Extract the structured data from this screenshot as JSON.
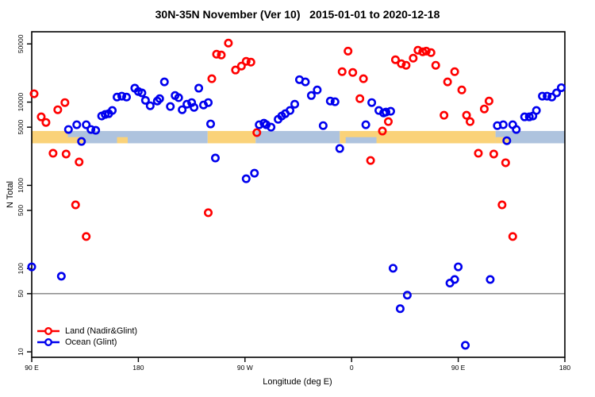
{
  "chart_data": {
    "type": "scatter",
    "title": "30N-35N November (Ver 10)   2015-01-01 to 2020-12-18",
    "xlabel": "Longitude (deg E)",
    "ylabel": "N Total",
    "x_axis": {
      "range_deg": [
        90,
        540
      ],
      "ticks": [
        {
          "value": 90,
          "label": "90 E"
        },
        {
          "value": 180,
          "label": "180"
        },
        {
          "value": 270,
          "label": "90 W"
        },
        {
          "value": 360,
          "label": "0"
        },
        {
          "value": 450,
          "label": "90 E"
        },
        {
          "value": 540,
          "label": "180"
        }
      ]
    },
    "y_axis": {
      "scale": "log10",
      "range": [
        8.6,
        70000
      ],
      "ticks": [
        {
          "value": 10,
          "label": "10"
        },
        {
          "value": 50,
          "label": "50"
        },
        {
          "value": 100,
          "label": "100"
        },
        {
          "value": 500,
          "label": "500"
        },
        {
          "value": 1000,
          "label": "1000"
        },
        {
          "value": 5000,
          "label": "5000"
        },
        {
          "value": 10000,
          "label": "10000"
        },
        {
          "value": 50000,
          "label": "50000"
        }
      ]
    },
    "reference_line_y": 50,
    "grid": false,
    "legend_position": "bottom-left",
    "surface_band": {
      "value_range": [
        3200,
        4500
      ],
      "land_color": "#FAD279",
      "ocean_color": "#AEC3DE",
      "segments": [
        {
          "surface": "land",
          "lon": [
            90,
            120.5
          ]
        },
        {
          "surface": "ocean",
          "lon": [
            120.5,
            238.5
          ]
        },
        {
          "surface": "land",
          "lon": [
            238.5,
            279
          ]
        },
        {
          "surface": "ocean",
          "lon": [
            279,
            350
          ]
        },
        {
          "surface": "land",
          "lon": [
            350,
            481.5
          ]
        },
        {
          "surface": "ocean",
          "lon": [
            481.5,
            540
          ]
        }
      ],
      "coast_patches": [
        {
          "surface": "land",
          "lon": [
            120.5,
            133.5
          ]
        },
        {
          "surface": "land",
          "lon": [
            162,
            171
          ]
        },
        {
          "surface": "ocean",
          "lon": [
            355,
            381
          ]
        },
        {
          "surface": "land",
          "lon": [
            481.5,
            493
          ]
        }
      ]
    },
    "series": [
      {
        "name": "Land (Nadir&Glint)",
        "color": "#FF0000",
        "points": [
          [
            92,
            12600
          ],
          [
            98,
            6650
          ],
          [
            102,
            5700
          ],
          [
            108,
            2430
          ],
          [
            112,
            8100
          ],
          [
            118,
            9870
          ],
          [
            119,
            2380
          ],
          [
            127,
            583
          ],
          [
            130,
            1910
          ],
          [
            136,
            243
          ],
          [
            239,
            469
          ],
          [
            242,
            19100
          ],
          [
            246,
            37600
          ],
          [
            250,
            36800
          ],
          [
            256,
            51200
          ],
          [
            262,
            24300
          ],
          [
            267,
            27100
          ],
          [
            271,
            30900
          ],
          [
            275,
            30200
          ],
          [
            280,
            4300
          ],
          [
            352,
            23200
          ],
          [
            357,
            41000
          ],
          [
            361,
            22700
          ],
          [
            367,
            11000
          ],
          [
            370,
            19100
          ],
          [
            376,
            1990
          ],
          [
            386,
            4490
          ],
          [
            391,
            5830
          ],
          [
            397,
            32300
          ],
          [
            402,
            28900
          ],
          [
            406,
            27700
          ],
          [
            412,
            33700
          ],
          [
            416,
            42000
          ],
          [
            420,
            40200
          ],
          [
            423,
            41000
          ],
          [
            427,
            39300
          ],
          [
            431,
            27700
          ],
          [
            438,
            6950
          ],
          [
            441,
            17500
          ],
          [
            447,
            23200
          ],
          [
            453,
            14000
          ],
          [
            457,
            6950
          ],
          [
            460,
            5830
          ],
          [
            467,
            2430
          ],
          [
            472,
            8280
          ],
          [
            476,
            10300
          ],
          [
            480,
            2380
          ],
          [
            487,
            583
          ],
          [
            490,
            1870
          ],
          [
            496,
            243
          ]
        ]
      },
      {
        "name": "Ocean (Glint)",
        "color": "#0000EE",
        "points": [
          [
            90,
            105
          ],
          [
            115,
            81
          ],
          [
            121,
            4690
          ],
          [
            128,
            5350
          ],
          [
            132,
            3370
          ],
          [
            136,
            5350
          ],
          [
            140,
            4690
          ],
          [
            144,
            4580
          ],
          [
            149,
            6810
          ],
          [
            152,
            7110
          ],
          [
            155,
            7260
          ],
          [
            158,
            7930
          ],
          [
            162,
            11500
          ],
          [
            166,
            11800
          ],
          [
            170,
            11500
          ],
          [
            177,
            14700
          ],
          [
            180,
            13400
          ],
          [
            183,
            12900
          ],
          [
            186,
            10500
          ],
          [
            190,
            9040
          ],
          [
            196,
            10300
          ],
          [
            198,
            11000
          ],
          [
            202,
            17500
          ],
          [
            207,
            8850
          ],
          [
            211,
            12000
          ],
          [
            214,
            11300
          ],
          [
            217,
            8100
          ],
          [
            221,
            9440
          ],
          [
            225,
            9870
          ],
          [
            227,
            8650
          ],
          [
            231,
            14700
          ],
          [
            235,
            9240
          ],
          [
            239,
            9870
          ],
          [
            241,
            5470
          ],
          [
            245,
            2130
          ],
          [
            271,
            1200
          ],
          [
            278,
            1400
          ],
          [
            282,
            5350
          ],
          [
            286,
            5580
          ],
          [
            288,
            5350
          ],
          [
            292,
            5000
          ],
          [
            298,
            6220
          ],
          [
            301,
            6810
          ],
          [
            304,
            7260
          ],
          [
            308,
            7930
          ],
          [
            312,
            9440
          ],
          [
            316,
            18600
          ],
          [
            321,
            17500
          ],
          [
            326,
            12000
          ],
          [
            331,
            14000
          ],
          [
            336,
            5220
          ],
          [
            342,
            10300
          ],
          [
            346,
            10100
          ],
          [
            350,
            2770
          ],
          [
            372,
            5350
          ],
          [
            377,
            9870
          ],
          [
            383,
            7930
          ],
          [
            387,
            7410
          ],
          [
            389,
            7590
          ],
          [
            393,
            7760
          ],
          [
            395,
            101
          ],
          [
            401,
            33
          ],
          [
            407,
            48
          ],
          [
            443,
            67
          ],
          [
            447,
            74
          ],
          [
            450,
            105
          ],
          [
            456,
            12
          ],
          [
            477,
            74
          ],
          [
            483,
            5220
          ],
          [
            488,
            5350
          ],
          [
            491,
            3440
          ],
          [
            496,
            5350
          ],
          [
            499,
            4690
          ],
          [
            506,
            6650
          ],
          [
            510,
            6650
          ],
          [
            513,
            6810
          ],
          [
            516,
            7930
          ],
          [
            521,
            11800
          ],
          [
            525,
            11800
          ],
          [
            529,
            11500
          ],
          [
            533,
            12900
          ],
          [
            537,
            14900
          ]
        ]
      }
    ]
  }
}
